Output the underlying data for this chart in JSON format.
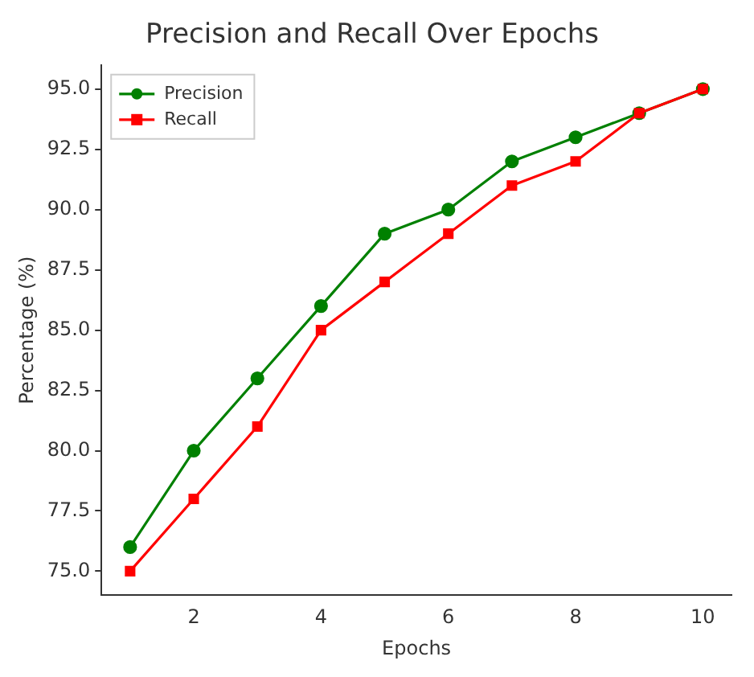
{
  "chart_data": {
    "type": "line",
    "title": "Precision and Recall Over Epochs",
    "xlabel": "Epochs",
    "ylabel": "Percentage (%)",
    "x": [
      1,
      2,
      3,
      4,
      5,
      6,
      7,
      8,
      9,
      10
    ],
    "series": [
      {
        "name": "Precision",
        "color": "#008000",
        "marker": "circle",
        "values": [
          76,
          80,
          83,
          86,
          89,
          90,
          92,
          93,
          94,
          95
        ]
      },
      {
        "name": "Recall",
        "color": "#ff0000",
        "marker": "square",
        "values": [
          75,
          78,
          81,
          85,
          87,
          89,
          91,
          92,
          94,
          95
        ]
      }
    ],
    "xlim": [
      0.55,
      10.45
    ],
    "xticks": [
      2,
      4,
      6,
      8,
      10
    ],
    "ylim": [
      74.0,
      96.0
    ],
    "yticks": [
      {
        "value": 75,
        "label": "75.0"
      },
      {
        "value": 77.5,
        "label": "77.5"
      },
      {
        "value": 80,
        "label": "80.0"
      },
      {
        "value": 82.5,
        "label": "82.5"
      },
      {
        "value": 85,
        "label": "85.0"
      },
      {
        "value": 87.5,
        "label": "87.5"
      },
      {
        "value": 90,
        "label": "90.0"
      },
      {
        "value": 92.5,
        "label": "92.5"
      },
      {
        "value": 95,
        "label": "95.0"
      }
    ],
    "legend": "top left",
    "grid": false,
    "line_style": "solid"
  }
}
